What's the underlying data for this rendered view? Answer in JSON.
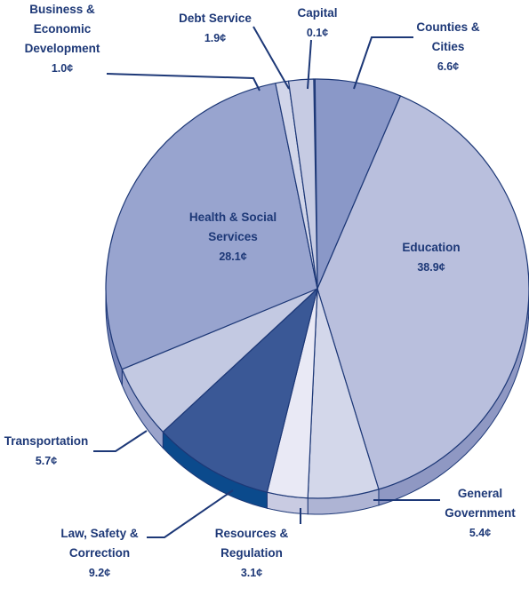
{
  "chart_data": {
    "type": "pie",
    "categories": [
      "Capital",
      "Counties & Cities",
      "Education",
      "General Government",
      "Resources & Regulation",
      "Law, Safety & Correction",
      "Transportation",
      "Health & Social Services",
      "Business & Economic Development",
      "Debt Service"
    ],
    "values": [
      0.1,
      6.6,
      38.9,
      5.4,
      3.1,
      9.2,
      5.7,
      28.1,
      1.0,
      1.9
    ],
    "value_labels": [
      "0.1¢",
      "6.6¢",
      "38.9¢",
      "5.4¢",
      "3.1¢",
      "9.2¢",
      "5.7¢",
      "28.1¢",
      "1.0¢",
      "1.9¢"
    ],
    "colors": [
      "#5f6fa8",
      "#8a98c8",
      "#b9bfdd",
      "#d3d7ea",
      "#e9e9f5",
      "#3a5896",
      "#c3c9e2",
      "#98a4cf",
      "#d1d5e9",
      "#c6cbe3"
    ],
    "side_colors": [
      "#4a5a96",
      "#6f7db3",
      "#8f98c3",
      "#aeb4d4",
      "#c9cbe2",
      "#0b4a8c",
      "#9aa3cb",
      "#7684b8",
      "#aab0d1",
      "#a1a8cc"
    ]
  }
}
